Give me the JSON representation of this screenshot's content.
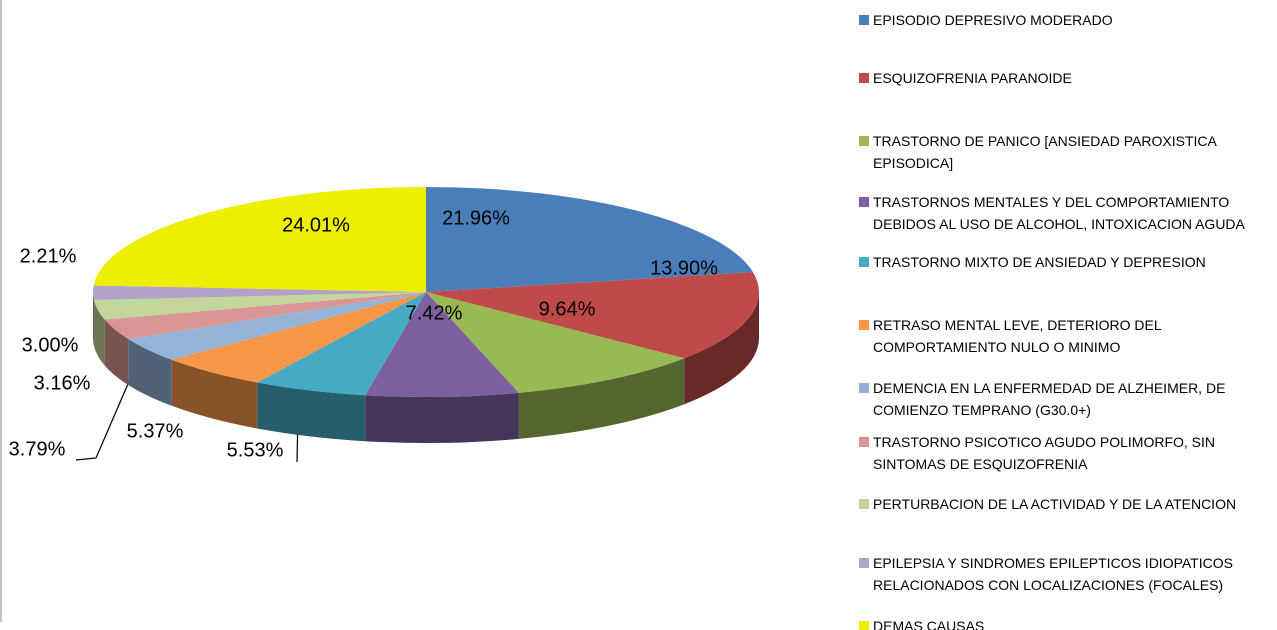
{
  "chart_data": {
    "type": "pie",
    "categories": [
      "EPISODIO DEPRESIVO MODERADO",
      "ESQUIZOFRENIA PARANOIDE",
      "TRASTORNO DE PANICO [ANSIEDAD PAROXISTICA EPISODICA]",
      "TRASTORNOS MENTALES Y DEL COMPORTAMIENTO DEBIDOS AL USO DE ALCOHOL, INTOXICACION AGUDA",
      "TRASTORNO MIXTO DE ANSIEDAD Y DEPRESION",
      "RETRASO MENTAL LEVE, DETERIORO DEL COMPORTAMIENTO NULO O MINIMO",
      "DEMENCIA EN LA ENFERMEDAD DE ALZHEIMER, DE COMIENZO TEMPRANO (G30.0+)",
      "TRASTORNO PSICOTICO AGUDO POLIMORFO, SIN SINTOMAS DE ESQUIZOFRENIA",
      "PERTURBACION DE LA ACTIVIDAD Y DE LA ATENCION",
      "EPILEPSIA Y SINDROMES EPILEPTICOS IDIOPATICOS RELACIONADOS CON LOCALIZACIONES (FOCALES)",
      "DEMAS CAUSAS"
    ],
    "values": [
      21.96,
      13.9,
      9.64,
      7.42,
      5.53,
      5.37,
      3.79,
      3.16,
      3.0,
      2.21,
      24.01
    ],
    "value_labels": [
      "21.96%",
      "13.90%",
      "9.64%",
      "7.42%",
      "5.53%",
      "5.37%",
      "3.79%",
      "3.16%",
      "3.00%",
      "2.21%",
      "24.01%"
    ],
    "colors": [
      "#4a7ebb",
      "#be4b48",
      "#98b954",
      "#7d60a0",
      "#46aac5",
      "#f79646",
      "#95b3d7",
      "#d99694",
      "#c3d69b",
      "#b3a2c7",
      "#eeee00"
    ],
    "legend": "right"
  }
}
